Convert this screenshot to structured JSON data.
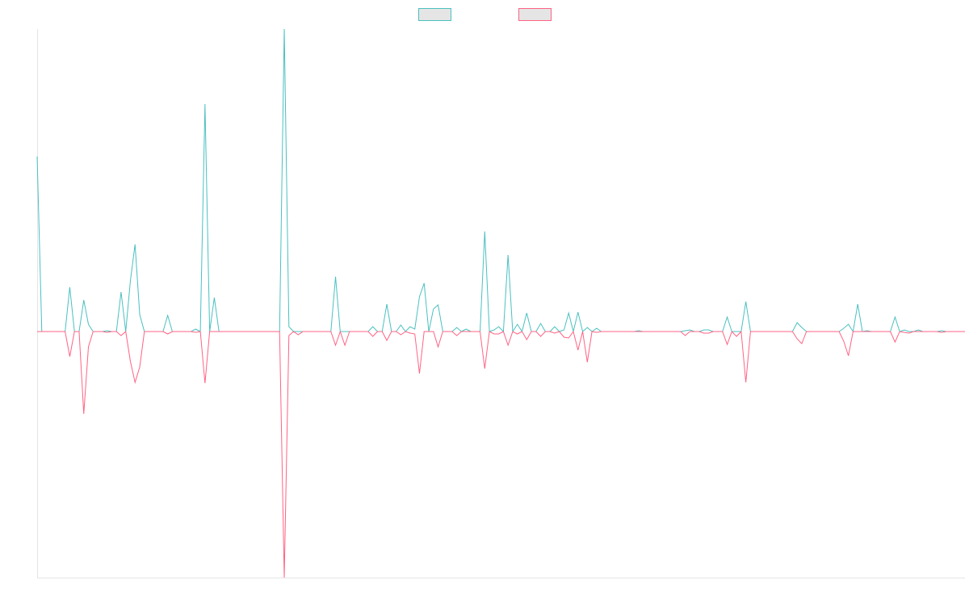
{
  "chart_data": {
    "type": "line",
    "legend": "top",
    "categories": [
      null,
      null,
      null,
      null,
      null,
      null,
      null,
      null,
      null,
      null,
      null,
      null,
      null,
      null,
      null,
      null,
      null,
      null,
      null,
      null,
      null,
      null,
      null,
      null,
      null,
      null,
      null,
      null,
      null,
      null,
      null,
      null,
      null,
      null,
      null,
      null,
      null,
      null,
      null,
      null,
      null,
      null,
      null,
      null,
      null,
      null,
      null,
      null,
      null,
      null,
      null,
      null,
      null,
      null,
      null,
      null,
      null,
      null,
      null,
      null,
      null,
      null,
      null,
      null,
      null,
      null,
      null,
      null,
      null,
      null,
      null,
      null,
      null,
      null,
      null,
      null,
      null,
      null,
      null,
      null,
      null,
      null,
      null,
      null,
      null,
      null,
      null,
      null,
      null,
      null,
      null,
      null,
      null,
      null,
      null,
      null,
      null,
      null,
      null,
      null,
      null,
      null,
      null,
      null,
      null,
      null,
      null,
      null,
      null,
      null,
      null,
      null,
      null,
      null,
      null,
      null,
      null,
      null,
      null,
      null,
      null,
      null,
      null,
      null,
      null,
      null,
      null,
      null,
      null,
      null,
      null,
      null,
      null,
      null,
      null,
      null,
      null,
      null,
      null,
      null,
      null,
      null,
      null,
      null,
      null,
      null,
      null,
      null,
      null,
      null,
      null,
      null,
      null,
      null,
      null,
      null,
      null,
      null,
      null,
      null,
      null,
      null,
      null,
      null,
      null,
      null,
      null,
      null,
      null,
      null,
      null,
      null,
      null,
      null,
      null,
      null,
      null,
      null,
      null,
      null,
      null,
      null,
      null,
      null,
      null,
      null,
      null,
      null,
      null,
      null,
      null,
      null,
      null,
      null,
      null,
      null,
      null,
      null,
      null,
      null
    ],
    "ylim": [
      -305,
      375
    ],
    "series": [
      {
        "color": "#4bc0c0",
        "values": [
          217,
          0,
          0,
          0,
          0,
          0,
          0,
          55,
          0,
          0,
          39,
          9,
          0,
          0,
          0,
          1,
          0,
          0,
          49,
          0,
          63,
          108,
          21,
          0,
          0,
          0,
          0,
          0,
          20,
          0,
          0,
          0,
          0,
          0,
          3,
          0,
          282,
          0,
          42,
          0,
          0,
          0,
          0,
          0,
          0,
          0,
          0,
          0,
          0,
          0,
          0,
          0,
          0,
          375,
          6,
          0,
          0,
          0,
          0,
          0,
          0,
          0,
          0,
          0,
          68,
          0,
          0,
          0,
          0,
          0,
          0,
          0,
          6,
          0,
          0,
          34,
          0,
          0,
          8,
          0,
          6,
          3,
          43,
          60,
          0,
          28,
          33,
          0,
          0,
          0,
          5,
          0,
          3,
          0,
          0,
          0,
          124,
          0,
          2,
          6,
          0,
          95,
          0,
          9,
          0,
          23,
          0,
          0,
          10,
          0,
          0,
          6,
          0,
          2,
          23,
          0,
          24,
          0,
          5,
          0,
          4,
          0,
          0,
          0,
          0,
          0,
          0,
          0,
          0,
          1,
          0,
          0,
          0,
          0,
          0,
          0,
          0,
          0,
          0,
          1,
          2,
          0,
          0,
          2,
          2,
          0,
          0,
          0,
          18,
          0,
          0,
          0,
          37,
          0,
          0,
          0,
          0,
          0,
          0,
          0,
          0,
          0,
          0,
          11,
          5,
          0,
          0,
          0,
          0,
          0,
          0,
          0,
          0,
          4,
          9,
          0,
          34,
          0,
          1,
          0,
          0,
          0,
          0,
          0,
          18,
          0,
          2,
          0,
          0,
          2,
          0,
          0,
          0,
          0,
          1,
          0,
          0,
          0,
          0,
          0
        ]
      },
      {
        "color": "#ff6384",
        "values": [
          0,
          0,
          0,
          0,
          0,
          0,
          0,
          -31,
          0,
          0,
          -102,
          -19,
          0,
          0,
          0,
          -1,
          0,
          0,
          -5,
          0,
          -37,
          -63,
          -44,
          0,
          0,
          0,
          0,
          0,
          -3,
          0,
          0,
          0,
          0,
          0,
          -1,
          0,
          -64,
          0,
          0,
          0,
          0,
          0,
          0,
          0,
          0,
          0,
          0,
          0,
          0,
          0,
          0,
          0,
          0,
          -305,
          -5,
          0,
          -4,
          0,
          0,
          0,
          0,
          0,
          0,
          0,
          -17,
          0,
          -17,
          0,
          0,
          0,
          0,
          0,
          -6,
          0,
          0,
          -11,
          0,
          0,
          -4,
          0,
          -2,
          -3,
          -52,
          0,
          0,
          0,
          -19,
          0,
          0,
          0,
          -5,
          0,
          0,
          0,
          0,
          0,
          -46,
          0,
          -3,
          -3,
          0,
          -17,
          0,
          -3,
          0,
          -10,
          0,
          0,
          -6,
          0,
          0,
          -2,
          0,
          -7,
          -8,
          0,
          -23,
          0,
          -38,
          0,
          -1,
          0,
          0,
          0,
          0,
          0,
          0,
          0,
          0,
          0,
          0,
          0,
          0,
          0,
          0,
          0,
          0,
          0,
          0,
          -5,
          0,
          0,
          0,
          -2,
          -2,
          0,
          0,
          0,
          -16,
          0,
          -6,
          0,
          -63,
          0,
          0,
          0,
          0,
          0,
          0,
          0,
          0,
          0,
          0,
          -9,
          -15,
          0,
          0,
          0,
          0,
          0,
          0,
          0,
          0,
          -12,
          -30,
          0,
          0,
          0,
          0,
          0,
          0,
          0,
          0,
          0,
          -13,
          0,
          -1,
          -2,
          0,
          0,
          0,
          0,
          0,
          0,
          -1,
          0,
          0,
          0,
          0,
          0
        ]
      }
    ]
  }
}
